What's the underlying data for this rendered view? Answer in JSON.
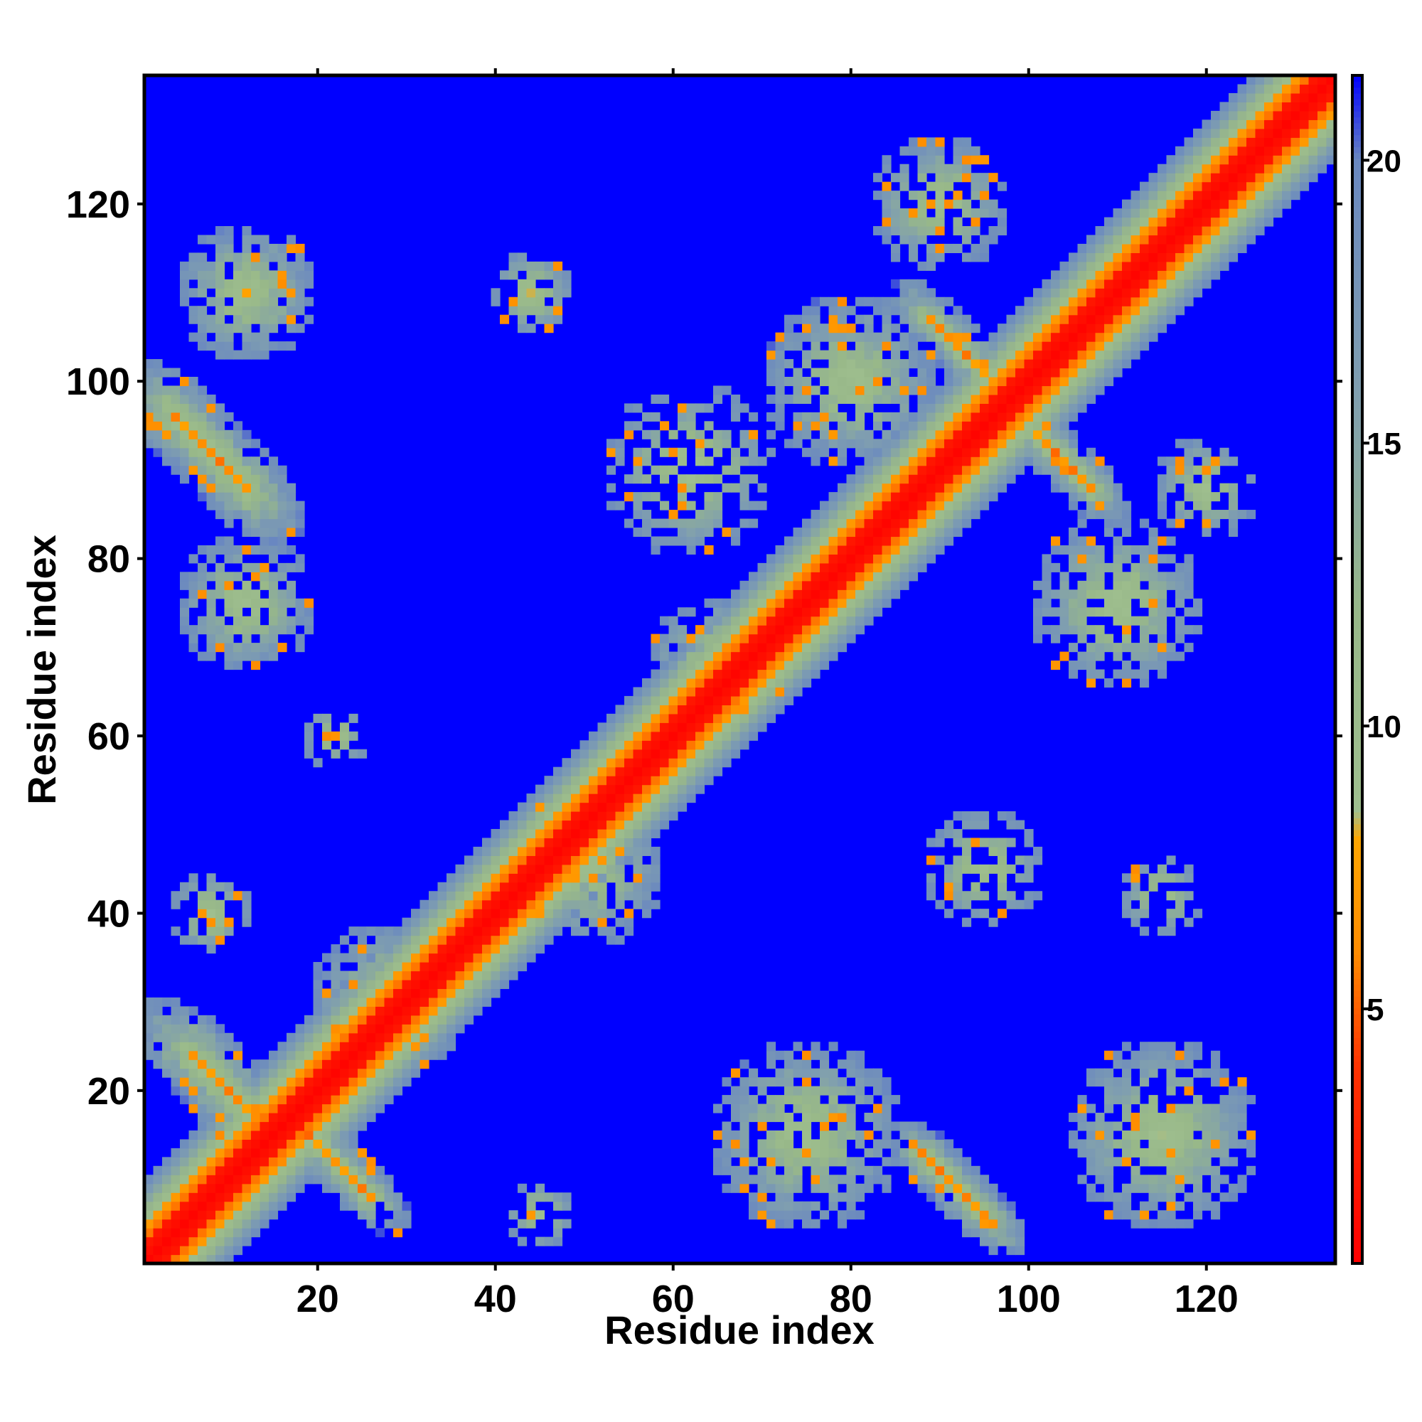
{
  "chart_data": {
    "type": "heatmap",
    "title": "",
    "xlabel": "Residue index",
    "ylabel": "Residue index",
    "x_range": [
      1,
      134
    ],
    "y_range": [
      1,
      134
    ],
    "x_ticks": [
      20,
      40,
      60,
      80,
      100,
      120
    ],
    "y_ticks": [
      20,
      40,
      60,
      80,
      100,
      120
    ],
    "colorbar": {
      "range": [
        0.5,
        21.5
      ],
      "ticks": [
        5,
        10,
        15,
        20
      ],
      "stops": [
        {
          "value": 0.5,
          "color": "#ff0000"
        },
        {
          "value": 4.0,
          "color": "#ff3300"
        },
        {
          "value": 6.0,
          "color": "#ff8c00"
        },
        {
          "value": 8.0,
          "color": "#ffa500"
        },
        {
          "value": 8.5,
          "color": "#9fbf8f"
        },
        {
          "value": 12.0,
          "color": "#98b889"
        },
        {
          "value": 16.0,
          "color": "#7f9eb0"
        },
        {
          "value": 20.0,
          "color": "#6a88c0"
        },
        {
          "value": 21.5,
          "color": "#0000ff"
        }
      ]
    },
    "matrix_description_values": {
      "diagonal": "distance near 0-4 along x = y",
      "far_value": 21.5
    },
    "regions": [
      {
        "x": 8,
        "y": 92,
        "spread": 9,
        "strength": 0.85,
        "orient": -1,
        "len": 10
      },
      {
        "x": 12,
        "y": 110,
        "spread": 8,
        "strength": 0.7,
        "orient": 0,
        "len": 0
      },
      {
        "x": 12,
        "y": 75,
        "spread": 8,
        "strength": 0.65,
        "orient": 0,
        "len": 0
      },
      {
        "x": 10,
        "y": 20,
        "spread": 9,
        "strength": 0.85,
        "orient": -1,
        "len": 10
      },
      {
        "x": 22,
        "y": 12,
        "spread": 6,
        "strength": 0.75,
        "orient": -1,
        "len": 10
      },
      {
        "x": 28,
        "y": 30,
        "spread": 9,
        "strength": 0.7,
        "orient": 0,
        "len": 0
      },
      {
        "x": 50,
        "y": 45,
        "spread": 9,
        "strength": 0.6,
        "orient": 0,
        "len": 0
      },
      {
        "x": 44,
        "y": 110,
        "spread": 5,
        "strength": 0.45,
        "orient": 0,
        "len": 0
      },
      {
        "x": 80,
        "y": 100,
        "spread": 10,
        "strength": 0.7,
        "orient": 0,
        "len": 0
      },
      {
        "x": 92,
        "y": 104,
        "spread": 6,
        "strength": 0.85,
        "orient": -1,
        "len": 8
      },
      {
        "x": 104,
        "y": 91,
        "spread": 6,
        "strength": 0.85,
        "orient": -1,
        "len": 8
      },
      {
        "x": 90,
        "y": 120,
        "spread": 8,
        "strength": 0.55,
        "orient": 0,
        "len": 0
      },
      {
        "x": 75,
        "y": 15,
        "spread": 11,
        "strength": 0.65,
        "orient": 0,
        "len": 0
      },
      {
        "x": 92,
        "y": 9,
        "spread": 6,
        "strength": 0.85,
        "orient": -1,
        "len": 9
      },
      {
        "x": 115,
        "y": 15,
        "spread": 11,
        "strength": 0.6,
        "orient": 0,
        "len": 0
      },
      {
        "x": 110,
        "y": 75,
        "spread": 10,
        "strength": 0.55,
        "orient": 0,
        "len": 0
      },
      {
        "x": 120,
        "y": 88,
        "spread": 6,
        "strength": 0.5,
        "orient": 0,
        "len": 0
      },
      {
        "x": 95,
        "y": 45,
        "spread": 7,
        "strength": 0.4,
        "orient": 0,
        "len": 0
      },
      {
        "x": 115,
        "y": 42,
        "spread": 5,
        "strength": 0.45,
        "orient": 0,
        "len": 0
      },
      {
        "x": 45,
        "y": 6,
        "spread": 4,
        "strength": 0.4,
        "orient": 0,
        "len": 0
      },
      {
        "x": 8,
        "y": 40,
        "spread": 5,
        "strength": 0.45,
        "orient": 0,
        "len": 0
      },
      {
        "x": 22,
        "y": 60,
        "spread": 4,
        "strength": 0.4,
        "orient": 0,
        "len": 0
      },
      {
        "x": 62,
        "y": 90,
        "spread": 10,
        "strength": 0.4,
        "orient": 0,
        "len": 0
      },
      {
        "x": 65,
        "y": 68,
        "spread": 8,
        "strength": 0.45,
        "orient": 0,
        "len": 0
      }
    ]
  }
}
